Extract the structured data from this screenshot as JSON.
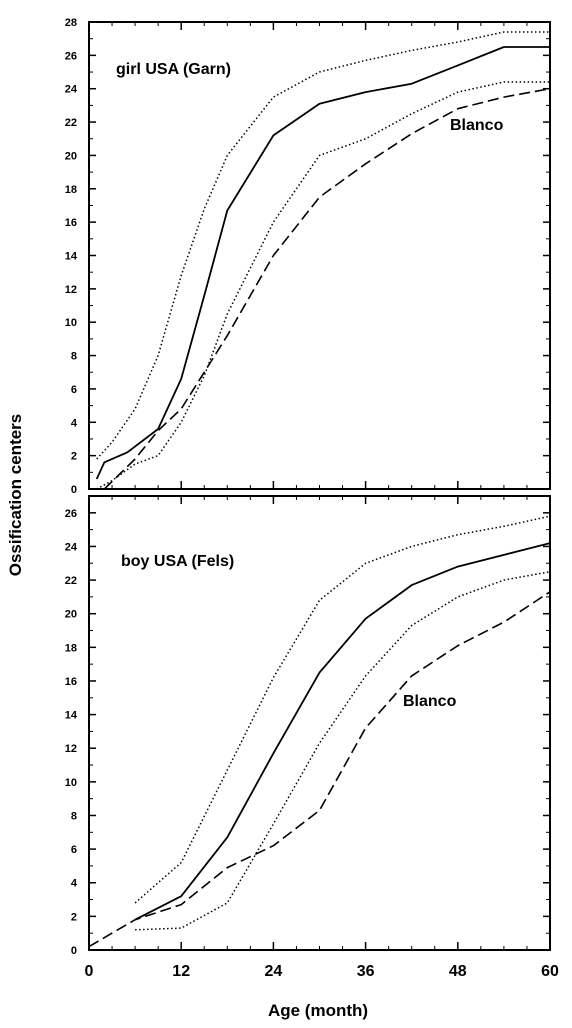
{
  "chart_data": {
    "type": "line",
    "xlabel": "Age (month)",
    "ylabel": "Ossification centers",
    "xlim": [
      0,
      60
    ],
    "xticks": [
      0,
      12,
      24,
      36,
      48,
      60
    ],
    "panels": [
      {
        "annotations": [
          "girl USA (Garn)",
          "Blanco"
        ],
        "ylim": [
          0,
          28
        ],
        "yticks": [
          0,
          2,
          4,
          6,
          8,
          10,
          12,
          14,
          16,
          18,
          20,
          22,
          24,
          26,
          28
        ],
        "series": [
          {
            "style": "dotted",
            "x": [
              1,
              3,
              6,
              9,
              12,
              15,
              18,
              24,
              30,
              36,
              42,
              48,
              54,
              60
            ],
            "y": [
              1.8,
              2.8,
              4.8,
              8.0,
              12.8,
              16.8,
              20.0,
              23.5,
              25.0,
              25.7,
              26.3,
              26.8,
              27.4,
              27.4
            ]
          },
          {
            "style": "solid",
            "x": [
              1,
              2,
              5,
              9,
              12,
              15,
              18,
              24,
              30,
              36,
              42,
              48,
              54,
              60
            ],
            "y": [
              0.6,
              1.6,
              2.2,
              3.6,
              6.6,
              11.6,
              16.7,
              21.2,
              23.1,
              23.8,
              24.3,
              25.4,
              26.5,
              26.5
            ]
          },
          {
            "style": "dotted",
            "x": [
              1,
              3,
              6,
              9,
              12,
              15,
              18,
              24,
              30,
              36,
              42,
              48,
              54,
              60
            ],
            "y": [
              0.0,
              0.5,
              1.5,
              2.0,
              4.0,
              6.8,
              10.5,
              16.0,
              20.0,
              21.0,
              22.5,
              23.8,
              24.4,
              24.4
            ]
          },
          {
            "style": "dashed",
            "x": [
              2,
              6,
              9,
              12,
              18,
              24,
              30,
              36,
              42,
              48,
              54,
              60
            ],
            "y": [
              0.0,
              1.8,
              3.5,
              4.8,
              9.2,
              14.0,
              17.5,
              19.5,
              21.3,
              22.8,
              23.5,
              24.0
            ]
          }
        ]
      },
      {
        "annotations": [
          "boy USA (Fels)",
          "Blanco"
        ],
        "ylim": [
          0,
          27
        ],
        "yticks": [
          0,
          2,
          4,
          6,
          8,
          10,
          12,
          14,
          16,
          18,
          20,
          22,
          24,
          26
        ],
        "series": [
          {
            "style": "dotted",
            "x": [
              6,
              12,
              18,
              24,
              30,
              36,
              42,
              48,
              54,
              60
            ],
            "y": [
              2.8,
              5.2,
              10.7,
              16.2,
              20.8,
              23.0,
              24.0,
              24.7,
              25.2,
              25.8
            ]
          },
          {
            "style": "solid",
            "x": [
              6,
              12,
              18,
              24,
              30,
              36,
              42,
              48,
              54,
              60
            ],
            "y": [
              1.8,
              3.2,
              6.7,
              11.7,
              16.5,
              19.7,
              21.7,
              22.8,
              23.5,
              24.2
            ]
          },
          {
            "style": "dotted",
            "x": [
              6,
              12,
              18,
              24,
              30,
              36,
              42,
              48,
              54,
              60
            ],
            "y": [
              1.2,
              1.3,
              2.8,
              7.5,
              12.3,
              16.3,
              19.3,
              21.0,
              22.0,
              22.5
            ]
          },
          {
            "style": "dashed",
            "x": [
              0,
              6,
              12,
              18,
              24,
              30,
              36,
              42,
              48,
              54,
              60
            ],
            "y": [
              0.2,
              1.8,
              2.7,
              4.9,
              6.2,
              8.3,
              13.2,
              16.3,
              18.1,
              19.5,
              21.3
            ]
          }
        ]
      }
    ]
  }
}
